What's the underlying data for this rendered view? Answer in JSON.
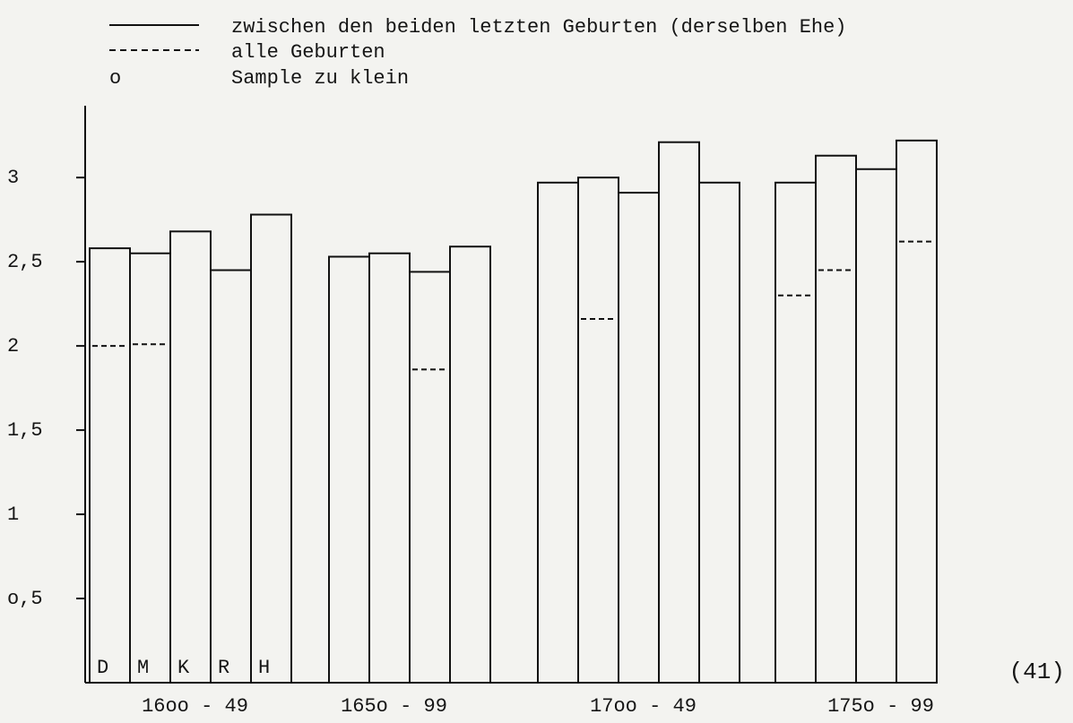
{
  "chart_data": {
    "type": "bar",
    "categories": [
      "D",
      "M",
      "K",
      "R",
      "H",
      null,
      null,
      null,
      null,
      null,
      null,
      null,
      null,
      null,
      null,
      null,
      null,
      null,
      null,
      null
    ],
    "period_labels": [
      "16oo - 49",
      "165o - 99",
      "17oo - 49",
      "175o - 99"
    ],
    "series": [
      {
        "name": "zwischen den beiden letzten Geburten (derselben Ehe)",
        "color": "#111111",
        "style": "solid",
        "values": [
          2.58,
          2.55,
          2.68,
          2.45,
          2.78,
          null,
          2.53,
          2.55,
          2.44,
          2.59,
          2.97,
          3.0,
          2.91,
          3.21,
          2.97,
          2.97,
          3.13,
          3.05,
          3.22,
          null
        ]
      },
      {
        "name": "alle Geburten",
        "color": "#111111",
        "style": "dashed",
        "values": [
          2.0,
          2.01,
          null,
          null,
          null,
          null,
          null,
          null,
          1.86,
          null,
          null,
          2.16,
          null,
          null,
          null,
          2.3,
          2.45,
          null,
          2.62,
          null
        ]
      }
    ],
    "sample_note": {
      "symbol": "o",
      "text": "Sample zu klein"
    },
    "page_number": "(41)",
    "ylim": [
      0,
      3.4
    ],
    "yticks": [
      {
        "value": 0.5,
        "label": "o,5"
      },
      1,
      {
        "value": 1.5,
        "label": "1,5"
      },
      2,
      {
        "value": 2.5,
        "label": "2,5"
      },
      3
    ]
  }
}
